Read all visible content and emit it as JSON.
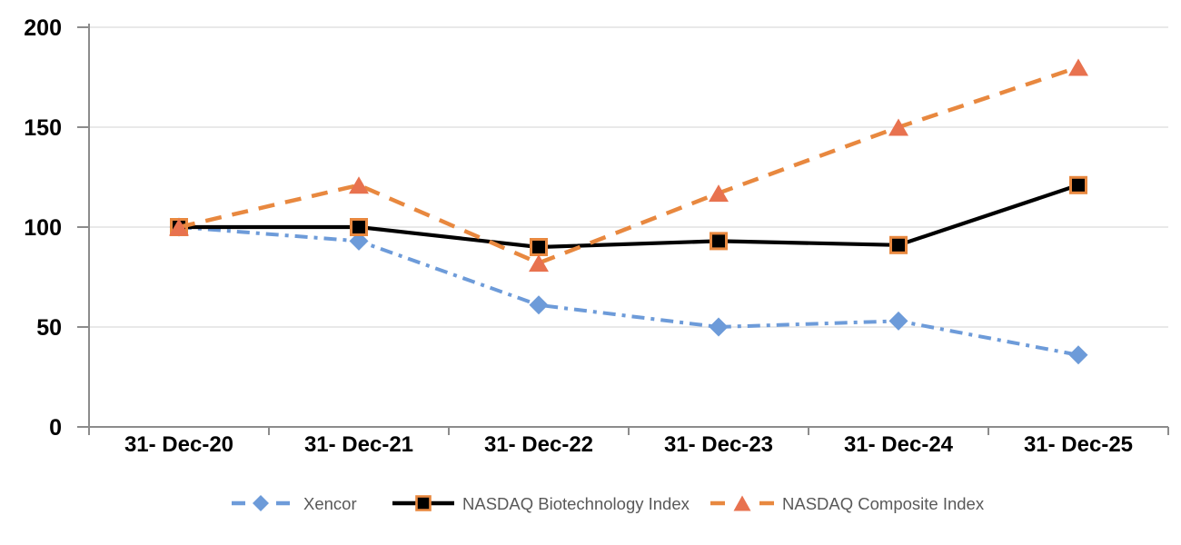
{
  "chart_data": {
    "type": "line",
    "title": "",
    "xlabel": "",
    "ylabel": "",
    "categories": [
      "31- Dec-20",
      "31- Dec-21",
      "31- Dec-22",
      "31- Dec-23",
      "31- Dec-24",
      "31- Dec-25"
    ],
    "y_axis": {
      "min": 0,
      "max": 200,
      "tick_interval": 50,
      "tick_values": [
        0,
        50,
        100,
        150,
        200
      ],
      "tick_labels": [
        "0",
        "50",
        "100",
        "150",
        "200"
      ]
    },
    "grid": true,
    "legend_position": "bottom",
    "series": [
      {
        "name": "Xencor",
        "values": [
          100,
          93,
          61,
          50,
          53,
          36
        ],
        "color": "#6D9BD9",
        "line_style": "dash-dot",
        "marker": "diamond",
        "marker_color": "#6D9BD9"
      },
      {
        "name": "NASDAQ Biotechnology Index",
        "values": [
          100,
          100,
          90,
          93,
          91,
          121
        ],
        "color": "#000000",
        "line_style": "solid",
        "marker": "square",
        "marker_color": "#000000",
        "marker_border": "#E8883F"
      },
      {
        "name": "NASDAQ Composite Index",
        "values": [
          100,
          121,
          82,
          117,
          150,
          180
        ],
        "color": "#E8883F",
        "line_style": "dashed",
        "marker": "triangle",
        "marker_color": "#E8724F"
      }
    ]
  },
  "colors": {
    "background": "#FFFFFF",
    "gridline": "#DCDCDC",
    "axis": "#8C8C8C",
    "axis_label": "#000000",
    "legend_text": "#595959"
  }
}
